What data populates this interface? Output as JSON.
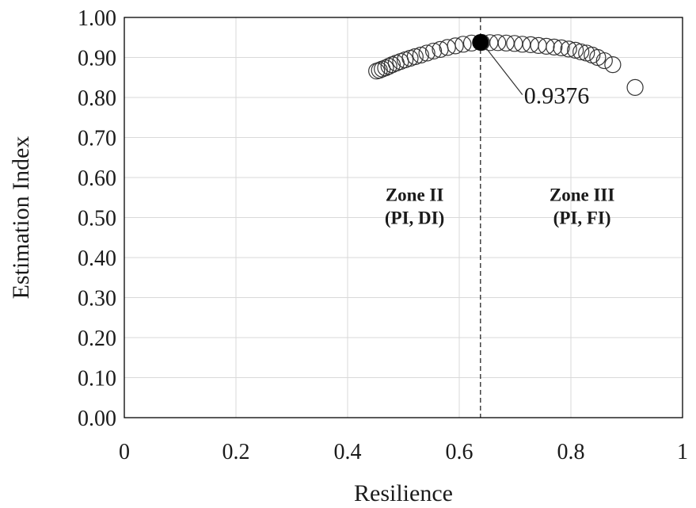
{
  "chart_data": {
    "type": "scatter",
    "xlabel": "Resilience",
    "ylabel": "Estimation Index",
    "xlim": [
      0,
      1
    ],
    "ylim": [
      0,
      1
    ],
    "x_ticks": [
      "0",
      "0.2",
      "0.4",
      "0.6",
      "0.8",
      "1"
    ],
    "y_ticks": [
      "0.00",
      "0.10",
      "0.20",
      "0.30",
      "0.40",
      "0.50",
      "0.60",
      "0.70",
      "0.80",
      "0.90",
      "1.00"
    ],
    "grid": true,
    "series": [
      {
        "marker": "open-circle",
        "x": [
          0.452,
          0.457,
          0.462,
          0.468,
          0.474,
          0.48,
          0.487,
          0.495,
          0.503,
          0.512,
          0.521,
          0.531,
          0.542,
          0.554,
          0.566,
          0.579,
          0.593,
          0.607,
          0.622,
          0.64,
          0.655,
          0.669,
          0.684,
          0.699,
          0.713,
          0.728,
          0.742,
          0.756,
          0.77,
          0.783,
          0.796,
          0.808,
          0.818,
          0.828,
          0.838,
          0.848,
          0.86,
          0.875,
          0.915
        ],
        "y": [
          0.866,
          0.868,
          0.871,
          0.874,
          0.878,
          0.882,
          0.886,
          0.89,
          0.894,
          0.898,
          0.902,
          0.906,
          0.911,
          0.916,
          0.92,
          0.925,
          0.929,
          0.933,
          0.936,
          0.9376,
          0.937,
          0.937,
          0.936,
          0.935,
          0.933,
          0.932,
          0.93,
          0.928,
          0.926,
          0.924,
          0.921,
          0.918,
          0.914,
          0.911,
          0.906,
          0.9,
          0.892,
          0.882,
          0.825
        ]
      }
    ],
    "highlight_point": {
      "x": 0.638,
      "y": 0.9376,
      "label": "0.9376"
    },
    "divider_x": 0.638,
    "divider_style": "dashed",
    "zones": [
      {
        "line1": "Zone II",
        "line2": "(PI, DI)",
        "x": 0.52,
        "y": 0.5
      },
      {
        "line1": "Zone III",
        "line2": "(PI, FI)",
        "x": 0.82,
        "y": 0.5
      }
    ],
    "colors": {
      "marker_edge": "#333333",
      "highlight_fill": "#000000",
      "grid": "#d9d9d9",
      "frame": "#000000",
      "divider": "#333333"
    }
  }
}
